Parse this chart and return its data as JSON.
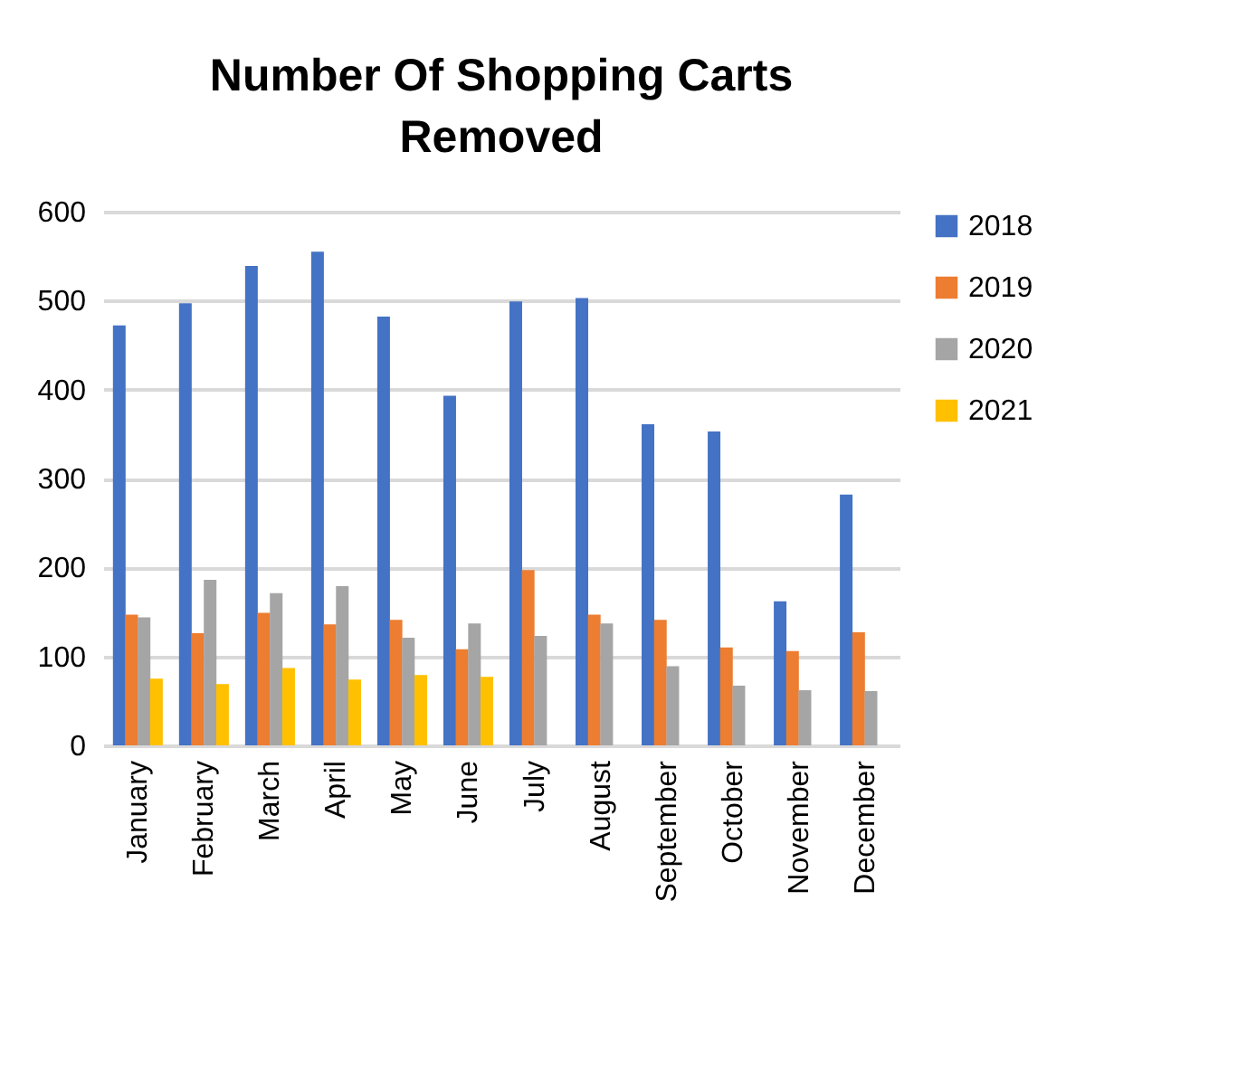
{
  "chart_data": {
    "type": "bar",
    "title": "Number Of Shopping Carts Removed",
    "categories": [
      "January",
      "February",
      "March",
      "April",
      "May",
      "June",
      "July",
      "August",
      "September",
      "October",
      "November",
      "December"
    ],
    "series": [
      {
        "name": "2018",
        "color": "#4472c4",
        "values": [
          472,
          497,
          539,
          555,
          482,
          393,
          499,
          503,
          361,
          353,
          162,
          282
        ]
      },
      {
        "name": "2019",
        "color": "#ed7d31",
        "values": [
          147,
          126,
          149,
          136,
          141,
          108,
          197,
          147,
          141,
          110,
          106,
          127
        ]
      },
      {
        "name": "2020",
        "color": "#a5a5a5",
        "values": [
          144,
          186,
          171,
          179,
          121,
          137,
          123,
          137,
          89,
          67,
          62,
          61
        ]
      },
      {
        "name": "2021",
        "color": "#ffc000",
        "values": [
          75,
          69,
          87,
          74,
          79,
          77,
          null,
          null,
          null,
          null,
          null,
          null
        ]
      }
    ],
    "ylim": [
      0,
      600
    ],
    "yticks": [
      0,
      100,
      200,
      300,
      400,
      500,
      600
    ],
    "grid": "y",
    "legend": "right"
  }
}
